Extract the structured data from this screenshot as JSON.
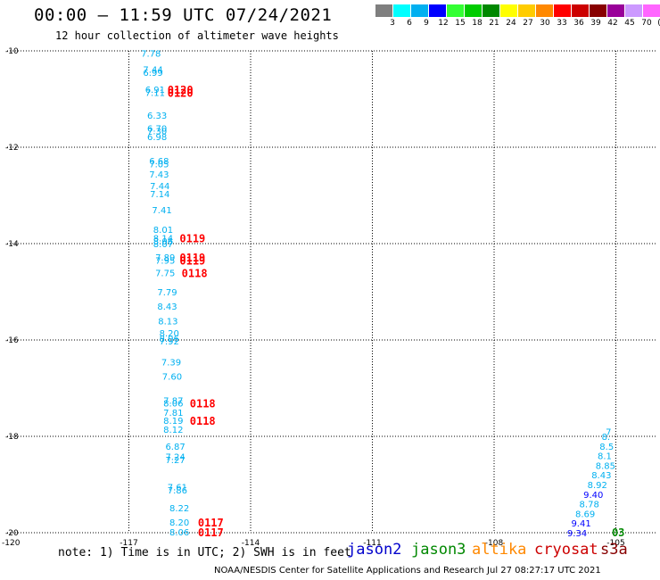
{
  "header": {
    "title": "00:00 – 11:59 UTC 07/24/2021",
    "subtitle": "12 hour collection of altimeter wave heights"
  },
  "color_legend": {
    "swatches": [
      "#7f7f7f",
      "#00ffff",
      "#00b0f0",
      "#0000ff",
      "#33ff33",
      "#00cc00",
      "#008800",
      "#ffff00",
      "#ffcc00",
      "#ff8800",
      "#ff0000",
      "#cc0000",
      "#880000",
      "#990099",
      "#cc99ff",
      "#ff66ff",
      "#000000"
    ],
    "ticks": [
      "3",
      "6",
      "9",
      "12",
      "15",
      "18",
      "21",
      "24",
      "27",
      "30",
      "33",
      "36",
      "39",
      "42",
      "45",
      "70",
      "(ft)"
    ]
  },
  "chart_data": {
    "type": "scatter",
    "xlim": [
      -120,
      -104
    ],
    "ylim": [
      -20,
      -10
    ],
    "xticks": [
      -120,
      -117,
      -114,
      -111,
      -108,
      -105
    ],
    "xtick_labels": [
      "-120",
      "-117",
      "-114",
      "-111",
      "-108",
      "-105"
    ],
    "yticks": [
      -10,
      -12,
      -14,
      -16,
      -18,
      -20
    ],
    "ytick_labels": [
      "-10",
      "-12",
      "-14",
      "-16",
      "-18",
      "-20"
    ],
    "grid": true,
    "swh_labels": [
      {
        "x": -116.7,
        "y": -10.05,
        "text": "7.78",
        "color": "#00b0f0"
      },
      {
        "x": -116.65,
        "y": -10.38,
        "text": "7.44",
        "color": "#00b0f0"
      },
      {
        "x": -116.65,
        "y": -10.44,
        "text": "6.99",
        "color": "#00b0f0"
      },
      {
        "x": -116.6,
        "y": -10.8,
        "text": "6.91",
        "color": "#00b0f0"
      },
      {
        "x": -116.6,
        "y": -10.86,
        "text": "7.11",
        "color": "#00b0f0"
      },
      {
        "x": -116.55,
        "y": -11.33,
        "text": "6.33",
        "color": "#00b0f0"
      },
      {
        "x": -116.55,
        "y": -11.6,
        "text": "6.70",
        "color": "#00b0f0"
      },
      {
        "x": -116.55,
        "y": -11.66,
        "text": "7.30",
        "color": "#00b0f0"
      },
      {
        "x": -116.55,
        "y": -11.78,
        "text": "6.98",
        "color": "#00b0f0"
      },
      {
        "x": -116.5,
        "y": -12.28,
        "text": "6.68",
        "color": "#00b0f0"
      },
      {
        "x": -116.5,
        "y": -12.34,
        "text": "7.05",
        "color": "#00b0f0"
      },
      {
        "x": -116.5,
        "y": -12.56,
        "text": "7.43",
        "color": "#00b0f0"
      },
      {
        "x": -116.48,
        "y": -12.8,
        "text": "7.44",
        "color": "#00b0f0"
      },
      {
        "x": -116.48,
        "y": -12.96,
        "text": "7.14",
        "color": "#00b0f0"
      },
      {
        "x": -116.43,
        "y": -13.3,
        "text": "7.41",
        "color": "#00b0f0"
      },
      {
        "x": -116.4,
        "y": -13.7,
        "text": "8.01",
        "color": "#00b0f0"
      },
      {
        "x": -116.4,
        "y": -13.88,
        "text": "8.14",
        "color": "#00b0f0"
      },
      {
        "x": -116.4,
        "y": -13.94,
        "text": "8.06",
        "color": "#00b0f0"
      },
      {
        "x": -116.4,
        "y": -14.0,
        "text": "8.07",
        "color": "#00b0f0"
      },
      {
        "x": -116.35,
        "y": -14.28,
        "text": "7.89",
        "color": "#00b0f0"
      },
      {
        "x": -116.35,
        "y": -14.34,
        "text": "7.95",
        "color": "#00b0f0"
      },
      {
        "x": -116.35,
        "y": -14.6,
        "text": "7.75",
        "color": "#00b0f0"
      },
      {
        "x": -116.3,
        "y": -15.0,
        "text": "7.79",
        "color": "#00b0f0"
      },
      {
        "x": -116.3,
        "y": -15.3,
        "text": "8.43",
        "color": "#00b0f0"
      },
      {
        "x": -116.28,
        "y": -15.6,
        "text": "8.13",
        "color": "#00b0f0"
      },
      {
        "x": -116.25,
        "y": -15.85,
        "text": "8.20",
        "color": "#00b0f0"
      },
      {
        "x": -116.25,
        "y": -15.96,
        "text": "8.06",
        "color": "#00b0f0"
      },
      {
        "x": -116.25,
        "y": -16.02,
        "text": "7.92",
        "color": "#00b0f0"
      },
      {
        "x": -116.2,
        "y": -16.45,
        "text": "7.39",
        "color": "#00b0f0"
      },
      {
        "x": -116.18,
        "y": -16.75,
        "text": "7.60",
        "color": "#00b0f0"
      },
      {
        "x": -116.15,
        "y": -17.25,
        "text": "7.87",
        "color": "#00b0f0"
      },
      {
        "x": -116.15,
        "y": -17.31,
        "text": "8.06",
        "color": "#00b0f0"
      },
      {
        "x": -116.15,
        "y": -17.5,
        "text": "7.81",
        "color": "#00b0f0"
      },
      {
        "x": -116.15,
        "y": -17.67,
        "text": "8.19",
        "color": "#00b0f0"
      },
      {
        "x": -116.15,
        "y": -17.85,
        "text": "8.12",
        "color": "#00b0f0"
      },
      {
        "x": -116.1,
        "y": -18.2,
        "text": "6.87",
        "color": "#00b0f0"
      },
      {
        "x": -116.1,
        "y": -18.42,
        "text": "7.24",
        "color": "#00b0f0"
      },
      {
        "x": -116.1,
        "y": -18.48,
        "text": "7.27",
        "color": "#00b0f0"
      },
      {
        "x": -116.05,
        "y": -19.05,
        "text": "7.61",
        "color": "#00b0f0"
      },
      {
        "x": -116.05,
        "y": -19.11,
        "text": "7.86",
        "color": "#00b0f0"
      },
      {
        "x": -116.0,
        "y": -19.48,
        "text": "8.22",
        "color": "#00b0f0"
      },
      {
        "x": -116.0,
        "y": -19.78,
        "text": "8.20",
        "color": "#00b0f0"
      },
      {
        "x": -116.0,
        "y": -19.98,
        "text": "8.06",
        "color": "#00b0f0"
      },
      {
        "x": -105.25,
        "y": -17.9,
        "text": "7",
        "color": "#00b0f0"
      },
      {
        "x": -105.35,
        "y": -18.0,
        "text": "8.",
        "color": "#00b0f0"
      },
      {
        "x": -105.4,
        "y": -18.2,
        "text": "8.5",
        "color": "#00b0f0"
      },
      {
        "x": -105.45,
        "y": -18.4,
        "text": "8.1",
        "color": "#00b0f0"
      },
      {
        "x": -105.5,
        "y": -18.6,
        "text": "8.85",
        "color": "#00b0f0"
      },
      {
        "x": -105.6,
        "y": -18.8,
        "text": "8.43",
        "color": "#00b0f0"
      },
      {
        "x": -105.7,
        "y": -19.0,
        "text": "8.92",
        "color": "#00b0f0"
      },
      {
        "x": -105.8,
        "y": -19.2,
        "text": "9.40",
        "color": "#0000ff"
      },
      {
        "x": -105.9,
        "y": -19.4,
        "text": "8.78",
        "color": "#00b0f0"
      },
      {
        "x": -106.0,
        "y": -19.6,
        "text": "8.69",
        "color": "#00b0f0"
      },
      {
        "x": -106.1,
        "y": -19.8,
        "text": "9.41",
        "color": "#0000ff"
      },
      {
        "x": -106.2,
        "y": -20.0,
        "text": "9.34",
        "color": "#0000ff"
      }
    ],
    "time_labels": [
      {
        "x": -116.05,
        "y": -10.8,
        "text": "0120",
        "satellite": "cryosat"
      },
      {
        "x": -116.05,
        "y": -10.86,
        "text": "0120",
        "satellite": "cryosat"
      },
      {
        "x": -115.75,
        "y": -13.88,
        "text": "0119",
        "satellite": "cryosat"
      },
      {
        "x": -115.75,
        "y": -14.28,
        "text": "0119",
        "satellite": "cryosat"
      },
      {
        "x": -115.75,
        "y": -14.34,
        "text": "0119",
        "satellite": "cryosat"
      },
      {
        "x": -115.7,
        "y": -14.6,
        "text": "0118",
        "satellite": "cryosat"
      },
      {
        "x": -115.5,
        "y": -17.31,
        "text": "0118",
        "satellite": "cryosat"
      },
      {
        "x": -115.5,
        "y": -17.67,
        "text": "0118",
        "satellite": "cryosat"
      },
      {
        "x": -115.3,
        "y": -19.78,
        "text": "0117",
        "satellite": "cryosat"
      },
      {
        "x": -115.3,
        "y": -19.98,
        "text": "0117",
        "satellite": "cryosat"
      },
      {
        "x": -105.1,
        "y": -19.98,
        "text": "03",
        "satellite": "jason3"
      }
    ]
  },
  "footer": {
    "note": "note: 1) Time is in UTC; 2) SWH is in feet",
    "satellites": [
      {
        "name": "jason2",
        "color": "#0000cc"
      },
      {
        "name": "jason3",
        "color": "#008800"
      },
      {
        "name": "altika",
        "color": "#ff8800"
      },
      {
        "name": "cryosat",
        "color": "#cc0000"
      },
      {
        "name": "s3a",
        "color": "#880000"
      }
    ],
    "credit": "NOAA/NESDIS Center for Satellite Applications and Research    Jul 27 08:27:17 UTC 2021"
  }
}
